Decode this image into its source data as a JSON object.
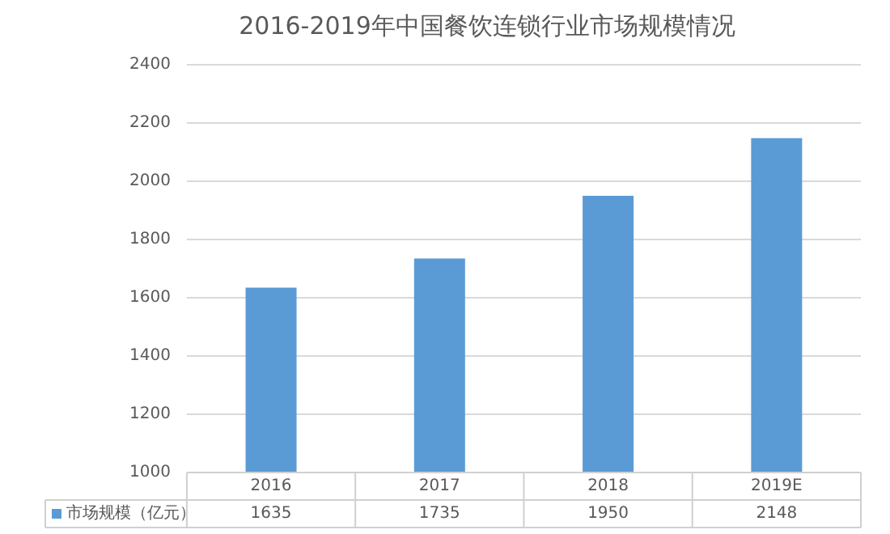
{
  "chart_data": {
    "type": "bar",
    "title": "2016-2019年中国餐饮连锁行业市场规模情况",
    "categories": [
      "2016",
      "2017",
      "2018",
      "2019E"
    ],
    "series": [
      {
        "name": "市场规模（亿元）",
        "color": "#5b9bd5",
        "values": [
          1635,
          1735,
          1950,
          2148
        ]
      }
    ],
    "ylim": [
      1000,
      2400
    ],
    "yticks": [
      1000,
      1200,
      1400,
      1600,
      1800,
      2000,
      2200,
      2400
    ],
    "grid": "y",
    "legend": "bottom",
    "data_labels": true
  }
}
